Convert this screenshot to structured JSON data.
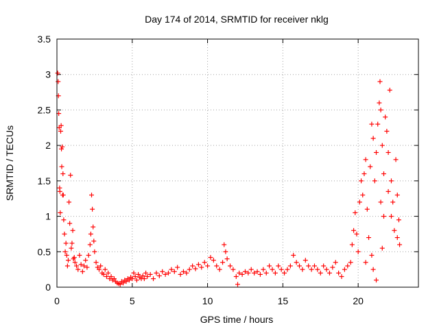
{
  "chart_data": {
    "type": "scatter",
    "title": "Day 174 of 2014, SRMTID for receiver nklg",
    "xlabel": "GPS time / hours",
    "ylabel": "SRMTID / TECUs",
    "xlim": [
      0,
      24
    ],
    "ylim": [
      0,
      3.5
    ],
    "xticks": [
      0,
      5,
      10,
      15,
      20
    ],
    "yticks": [
      0,
      0.5,
      1,
      1.5,
      2,
      2.5,
      3,
      3.5
    ],
    "grid": true,
    "marker": "+",
    "series": [
      {
        "name": "SRMTID",
        "color": "#ff0000",
        "points": [
          [
            0.05,
            3.02
          ],
          [
            0.08,
            2.9
          ],
          [
            0.1,
            2.7
          ],
          [
            0.12,
            2.45
          ],
          [
            0.15,
            2.25
          ],
          [
            0.18,
            1.4
          ],
          [
            0.2,
            1.35
          ],
          [
            0.22,
            1.05
          ],
          [
            0.25,
            2.2
          ],
          [
            0.28,
            2.28
          ],
          [
            0.3,
            1.95
          ],
          [
            0.32,
            1.7
          ],
          [
            0.35,
            1.98
          ],
          [
            0.38,
            1.3
          ],
          [
            0.4,
            1.6
          ],
          [
            0.42,
            1.3
          ],
          [
            0.45,
            0.95
          ],
          [
            0.5,
            0.75
          ],
          [
            0.55,
            0.5
          ],
          [
            0.6,
            0.62
          ],
          [
            0.65,
            0.45
          ],
          [
            0.7,
            0.3
          ],
          [
            0.75,
            0.38
          ],
          [
            0.8,
            1.2
          ],
          [
            0.85,
            0.9
          ],
          [
            0.9,
            1.58
          ],
          [
            0.95,
            0.55
          ],
          [
            1.0,
            0.62
          ],
          [
            1.05,
            0.8
          ],
          [
            1.1,
            0.4
          ],
          [
            1.15,
            0.42
          ],
          [
            1.2,
            0.35
          ],
          [
            1.3,
            0.3
          ],
          [
            1.4,
            0.25
          ],
          [
            1.5,
            0.45
          ],
          [
            1.6,
            0.32
          ],
          [
            1.7,
            0.22
          ],
          [
            1.8,
            0.3
          ],
          [
            1.9,
            0.38
          ],
          [
            2.0,
            0.28
          ],
          [
            2.1,
            0.45
          ],
          [
            2.2,
            0.6
          ],
          [
            2.25,
            0.75
          ],
          [
            2.3,
            1.3
          ],
          [
            2.35,
            1.1
          ],
          [
            2.4,
            0.85
          ],
          [
            2.45,
            0.65
          ],
          [
            2.5,
            0.5
          ],
          [
            2.6,
            0.35
          ],
          [
            2.7,
            0.28
          ],
          [
            2.8,
            0.25
          ],
          [
            2.9,
            0.3
          ],
          [
            3.0,
            0.2
          ],
          [
            3.1,
            0.18
          ],
          [
            3.2,
            0.25
          ],
          [
            3.3,
            0.15
          ],
          [
            3.4,
            0.2
          ],
          [
            3.5,
            0.12
          ],
          [
            3.6,
            0.15
          ],
          [
            3.7,
            0.1
          ],
          [
            3.8,
            0.12
          ],
          [
            3.9,
            0.08
          ],
          [
            4.0,
            0.06
          ],
          [
            4.1,
            0.05
          ],
          [
            4.2,
            0.04
          ],
          [
            4.3,
            0.08
          ],
          [
            4.4,
            0.06
          ],
          [
            4.5,
            0.1
          ],
          [
            4.6,
            0.08
          ],
          [
            4.7,
            0.12
          ],
          [
            4.8,
            0.1
          ],
          [
            4.9,
            0.14
          ],
          [
            5.0,
            0.12
          ],
          [
            5.1,
            0.2
          ],
          [
            5.2,
            0.15
          ],
          [
            5.3,
            0.1
          ],
          [
            5.4,
            0.18
          ],
          [
            5.5,
            0.14
          ],
          [
            5.6,
            0.12
          ],
          [
            5.7,
            0.16
          ],
          [
            5.8,
            0.12
          ],
          [
            5.9,
            0.2
          ],
          [
            6.0,
            0.15
          ],
          [
            6.2,
            0.18
          ],
          [
            6.4,
            0.12
          ],
          [
            6.6,
            0.2
          ],
          [
            6.8,
            0.16
          ],
          [
            7.0,
            0.22
          ],
          [
            7.2,
            0.18
          ],
          [
            7.4,
            0.2
          ],
          [
            7.6,
            0.25
          ],
          [
            7.8,
            0.22
          ],
          [
            8.0,
            0.28
          ],
          [
            8.2,
            0.18
          ],
          [
            8.4,
            0.22
          ],
          [
            8.6,
            0.2
          ],
          [
            8.8,
            0.25
          ],
          [
            9.0,
            0.3
          ],
          [
            9.2,
            0.26
          ],
          [
            9.4,
            0.32
          ],
          [
            9.6,
            0.28
          ],
          [
            9.8,
            0.35
          ],
          [
            10.0,
            0.3
          ],
          [
            10.2,
            0.42
          ],
          [
            10.4,
            0.38
          ],
          [
            10.6,
            0.3
          ],
          [
            10.8,
            0.25
          ],
          [
            11.0,
            0.35
          ],
          [
            11.1,
            0.6
          ],
          [
            11.2,
            0.5
          ],
          [
            11.3,
            0.4
          ],
          [
            11.5,
            0.3
          ],
          [
            11.7,
            0.25
          ],
          [
            11.9,
            0.15
          ],
          [
            12.0,
            0.04
          ],
          [
            12.1,
            0.2
          ],
          [
            12.3,
            0.18
          ],
          [
            12.5,
            0.22
          ],
          [
            12.7,
            0.2
          ],
          [
            12.9,
            0.25
          ],
          [
            13.1,
            0.2
          ],
          [
            13.3,
            0.22
          ],
          [
            13.5,
            0.18
          ],
          [
            13.7,
            0.25
          ],
          [
            13.9,
            0.2
          ],
          [
            14.1,
            0.3
          ],
          [
            14.3,
            0.25
          ],
          [
            14.5,
            0.2
          ],
          [
            14.7,
            0.3
          ],
          [
            14.9,
            0.25
          ],
          [
            15.1,
            0.2
          ],
          [
            15.3,
            0.25
          ],
          [
            15.5,
            0.3
          ],
          [
            15.7,
            0.45
          ],
          [
            15.9,
            0.35
          ],
          [
            16.1,
            0.3
          ],
          [
            16.3,
            0.25
          ],
          [
            16.5,
            0.38
          ],
          [
            16.7,
            0.3
          ],
          [
            16.9,
            0.25
          ],
          [
            17.1,
            0.3
          ],
          [
            17.3,
            0.25
          ],
          [
            17.5,
            0.2
          ],
          [
            17.7,
            0.3
          ],
          [
            17.9,
            0.25
          ],
          [
            18.1,
            0.2
          ],
          [
            18.3,
            0.28
          ],
          [
            18.5,
            0.35
          ],
          [
            18.7,
            0.2
          ],
          [
            18.9,
            0.15
          ],
          [
            19.1,
            0.25
          ],
          [
            19.3,
            0.3
          ],
          [
            19.5,
            0.35
          ],
          [
            19.6,
            0.6
          ],
          [
            19.7,
            0.8
          ],
          [
            19.8,
            1.05
          ],
          [
            19.9,
            0.75
          ],
          [
            20.0,
            0.5
          ],
          [
            20.1,
            1.2
          ],
          [
            20.2,
            1.5
          ],
          [
            20.3,
            1.3
          ],
          [
            20.4,
            1.6
          ],
          [
            20.5,
            1.8
          ],
          [
            20.6,
            1.1
          ],
          [
            20.7,
            0.7
          ],
          [
            20.8,
            1.7
          ],
          [
            20.9,
            2.3
          ],
          [
            21.0,
            2.1
          ],
          [
            21.1,
            1.5
          ],
          [
            21.2,
            1.9
          ],
          [
            21.3,
            2.3
          ],
          [
            21.4,
            2.6
          ],
          [
            21.45,
            2.9
          ],
          [
            21.5,
            2.5
          ],
          [
            21.6,
            2.0
          ],
          [
            21.7,
            1.6
          ],
          [
            21.8,
            2.4
          ],
          [
            21.9,
            2.2
          ],
          [
            22.0,
            1.9
          ],
          [
            22.1,
            2.78
          ],
          [
            22.2,
            1.5
          ],
          [
            22.3,
            1.2
          ],
          [
            22.4,
            0.8
          ],
          [
            22.5,
            1.8
          ],
          [
            22.6,
            1.3
          ],
          [
            22.7,
            0.95
          ],
          [
            22.75,
            0.6
          ],
          [
            20.5,
            0.35
          ],
          [
            21.0,
            0.25
          ],
          [
            20.9,
            0.45
          ],
          [
            21.2,
            0.1
          ],
          [
            21.6,
            0.55
          ],
          [
            22.2,
            1.0
          ],
          [
            22.0,
            1.35
          ],
          [
            21.7,
            1.0
          ],
          [
            21.5,
            1.2
          ],
          [
            22.6,
            0.7
          ]
        ]
      }
    ]
  }
}
